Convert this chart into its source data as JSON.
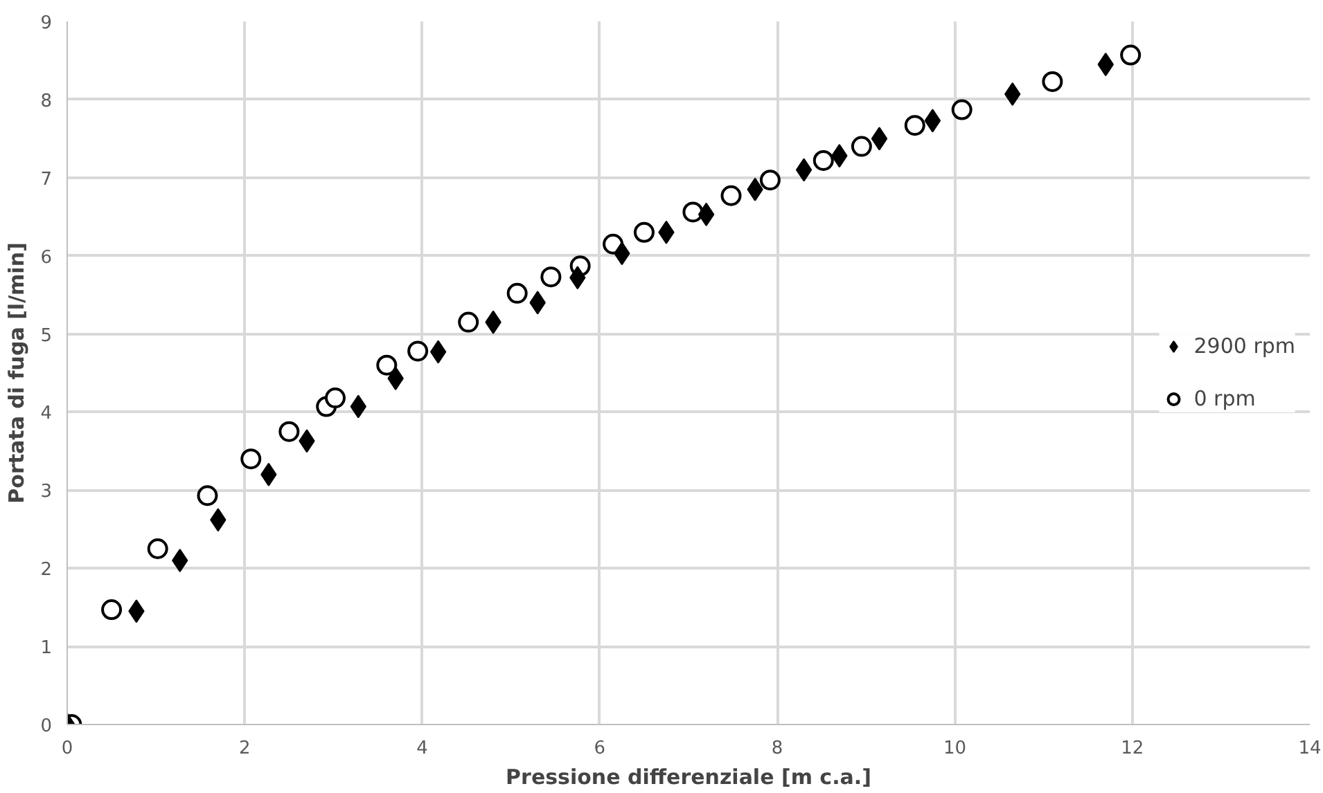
{
  "chart_data": {
    "type": "scatter",
    "xlabel": "Pressione differenziale [m c.a.]",
    "ylabel": "Portata di fuga [l/min]",
    "xlim": [
      0,
      14
    ],
    "ylim": [
      0,
      9
    ],
    "xticks": [
      0,
      2,
      4,
      6,
      8,
      10,
      12,
      14
    ],
    "yticks": [
      0,
      1,
      2,
      3,
      4,
      5,
      6,
      7,
      8,
      9
    ],
    "grid": true,
    "legend": "right",
    "series": [
      {
        "name": "2900 rpm",
        "color": "#000000",
        "marker": "diamond",
        "x": [
          0,
          0.78,
          1.27,
          1.7,
          2.27,
          2.7,
          3.28,
          3.7,
          4.18,
          4.8,
          5.3,
          5.75,
          6.25,
          6.75,
          7.2,
          7.75,
          8.3,
          8.7,
          9.15,
          9.75,
          10.65,
          11.7
        ],
        "values": [
          0,
          1.45,
          2.1,
          2.62,
          3.2,
          3.63,
          4.07,
          4.43,
          4.77,
          5.15,
          5.4,
          5.72,
          6.03,
          6.3,
          6.53,
          6.85,
          7.1,
          7.28,
          7.5,
          7.73,
          8.07,
          8.45
        ]
      },
      {
        "name": "0 rpm",
        "color": "#ffffff",
        "marker": "circle",
        "x": [
          0.05,
          0.5,
          1.02,
          1.58,
          2.07,
          2.5,
          2.92,
          3.02,
          3.6,
          3.95,
          4.52,
          5.07,
          5.45,
          5.78,
          6.15,
          6.5,
          7.05,
          7.48,
          7.92,
          8.52,
          8.95,
          9.55,
          10.08,
          11.1,
          11.98
        ],
        "values": [
          0,
          1.47,
          2.25,
          2.93,
          3.4,
          3.75,
          4.07,
          4.18,
          4.6,
          4.78,
          5.15,
          5.52,
          5.73,
          5.87,
          6.15,
          6.3,
          6.56,
          6.77,
          6.97,
          7.22,
          7.4,
          7.67,
          7.87,
          8.23,
          8.57
        ]
      }
    ]
  }
}
